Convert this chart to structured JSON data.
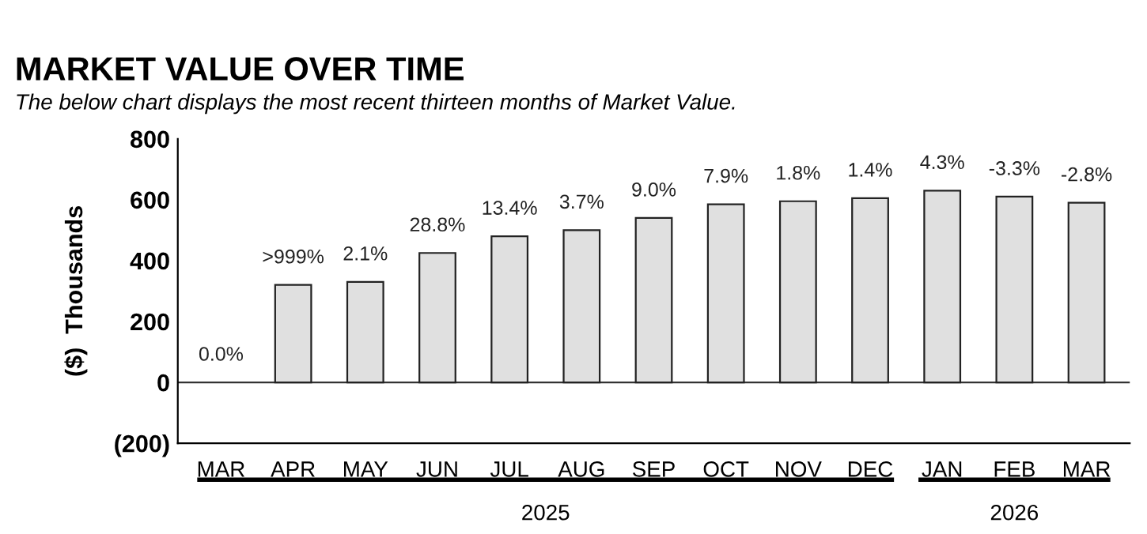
{
  "chart_data": {
    "type": "bar",
    "title": "MARKET VALUE OVER TIME",
    "subtitle": "The below chart displays the most recent thirteen months of Market Value.",
    "ylabel": "($)  Thousands",
    "categories": [
      "MAR",
      "APR",
      "MAY",
      "JUN",
      "JUL",
      "AUG",
      "SEP",
      "OCT",
      "NOV",
      "DEC",
      "JAN",
      "FEB",
      "MAR"
    ],
    "values": [
      0,
      320,
      330,
      425,
      480,
      500,
      540,
      585,
      595,
      605,
      630,
      610,
      590
    ],
    "color": "#e0e0e0",
    "ylim": [
      -200,
      800
    ],
    "yticks": [
      {
        "value": -200,
        "label": "(200)"
      },
      0,
      200,
      400,
      600,
      800
    ],
    "ref_lines": [
      {
        "axis": "y",
        "value": 0,
        "color": "#333333"
      }
    ],
    "annotations": [
      "0.0%",
      ">999%",
      "2.1%",
      "28.8%",
      "13.4%",
      "3.7%",
      "9.0%",
      "7.9%",
      "1.8%",
      "1.4%",
      "4.3%",
      "-3.3%",
      "-2.8%",
      "2025",
      "2026"
    ],
    "grid": false
  }
}
